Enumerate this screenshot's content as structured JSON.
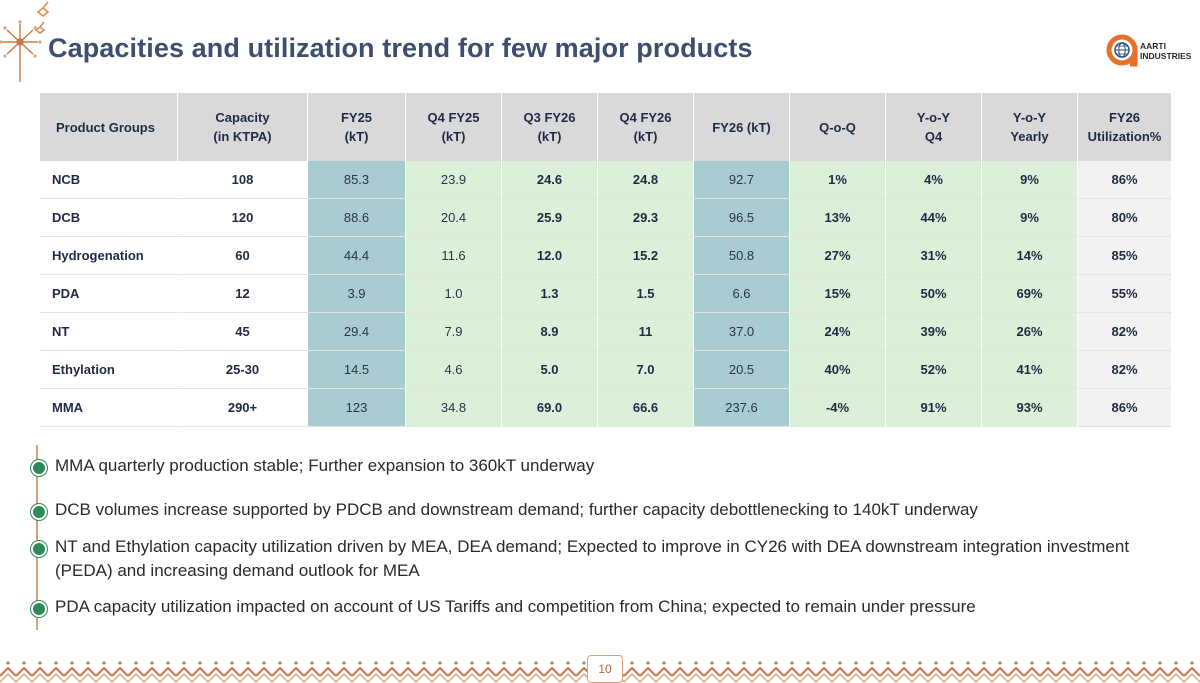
{
  "page": {
    "title": "Capacities and utilization trend for few major products",
    "page_number": "10"
  },
  "brand": {
    "logo_icon": "globe-in-a-icon",
    "name_line1": "AARTI",
    "name_line2": "INDUSTRIES",
    "accent_color": "#e8702a",
    "heading_color": "#3d4f6e"
  },
  "table": {
    "headers": [
      "Product Groups",
      "Capacity\n(in KTPA)",
      "FY25\n(kT)",
      "Q4 FY25\n(kT)",
      "Q3 FY26\n(kT)",
      "Q4 FY26\n(kT)",
      "FY26 (kT)",
      "Q-o-Q",
      "Y-o-Y\nQ4",
      "Y-o-Y\nYearly",
      "FY26\nUtilization%"
    ],
    "rows": [
      [
        "NCB",
        "108",
        "85.3",
        "23.9",
        "24.6",
        "24.8",
        "92.7",
        "1%",
        "4%",
        "9%",
        "86%"
      ],
      [
        "DCB",
        "120",
        "88.6",
        "20.4",
        "25.9",
        "29.3",
        "96.5",
        "13%",
        "44%",
        "9%",
        "80%"
      ],
      [
        "Hydrogenation",
        "60",
        "44.4",
        "11.6",
        "12.0",
        "15.2",
        "50.8",
        "27%",
        "31%",
        "14%",
        "85%"
      ],
      [
        "PDA",
        "12",
        "3.9",
        "1.0",
        "1.3",
        "1.5",
        "6.6",
        "15%",
        "50%",
        "69%",
        "55%"
      ],
      [
        "NT",
        "45",
        "29.4",
        "7.9",
        "8.9",
        "11",
        "37.0",
        "24%",
        "39%",
        "26%",
        "82%"
      ],
      [
        "Ethylation",
        "25-30",
        "14.5",
        "4.6",
        "5.0",
        "7.0",
        "20.5",
        "40%",
        "52%",
        "41%",
        "82%"
      ],
      [
        "MMA",
        "290+",
        "123",
        "34.8",
        "69.0",
        "66.6",
        "237.6",
        "-4%",
        "91%",
        "93%",
        "86%"
      ]
    ]
  },
  "bullets": [
    "MMA quarterly production stable; Further expansion to 360kT underway",
    "DCB volumes increase supported by PDCB and downstream demand; further capacity debottlenecking to 140kT underway",
    "NT and Ethylation capacity utilization driven by MEA, DEA demand; Expected to improve in CY26 with DEA downstream integration investment (PEDA) and increasing demand outlook for MEA",
    "PDA capacity utilization impacted on account of US Tariffs and competition from China; expected to remain under pressure"
  ]
}
